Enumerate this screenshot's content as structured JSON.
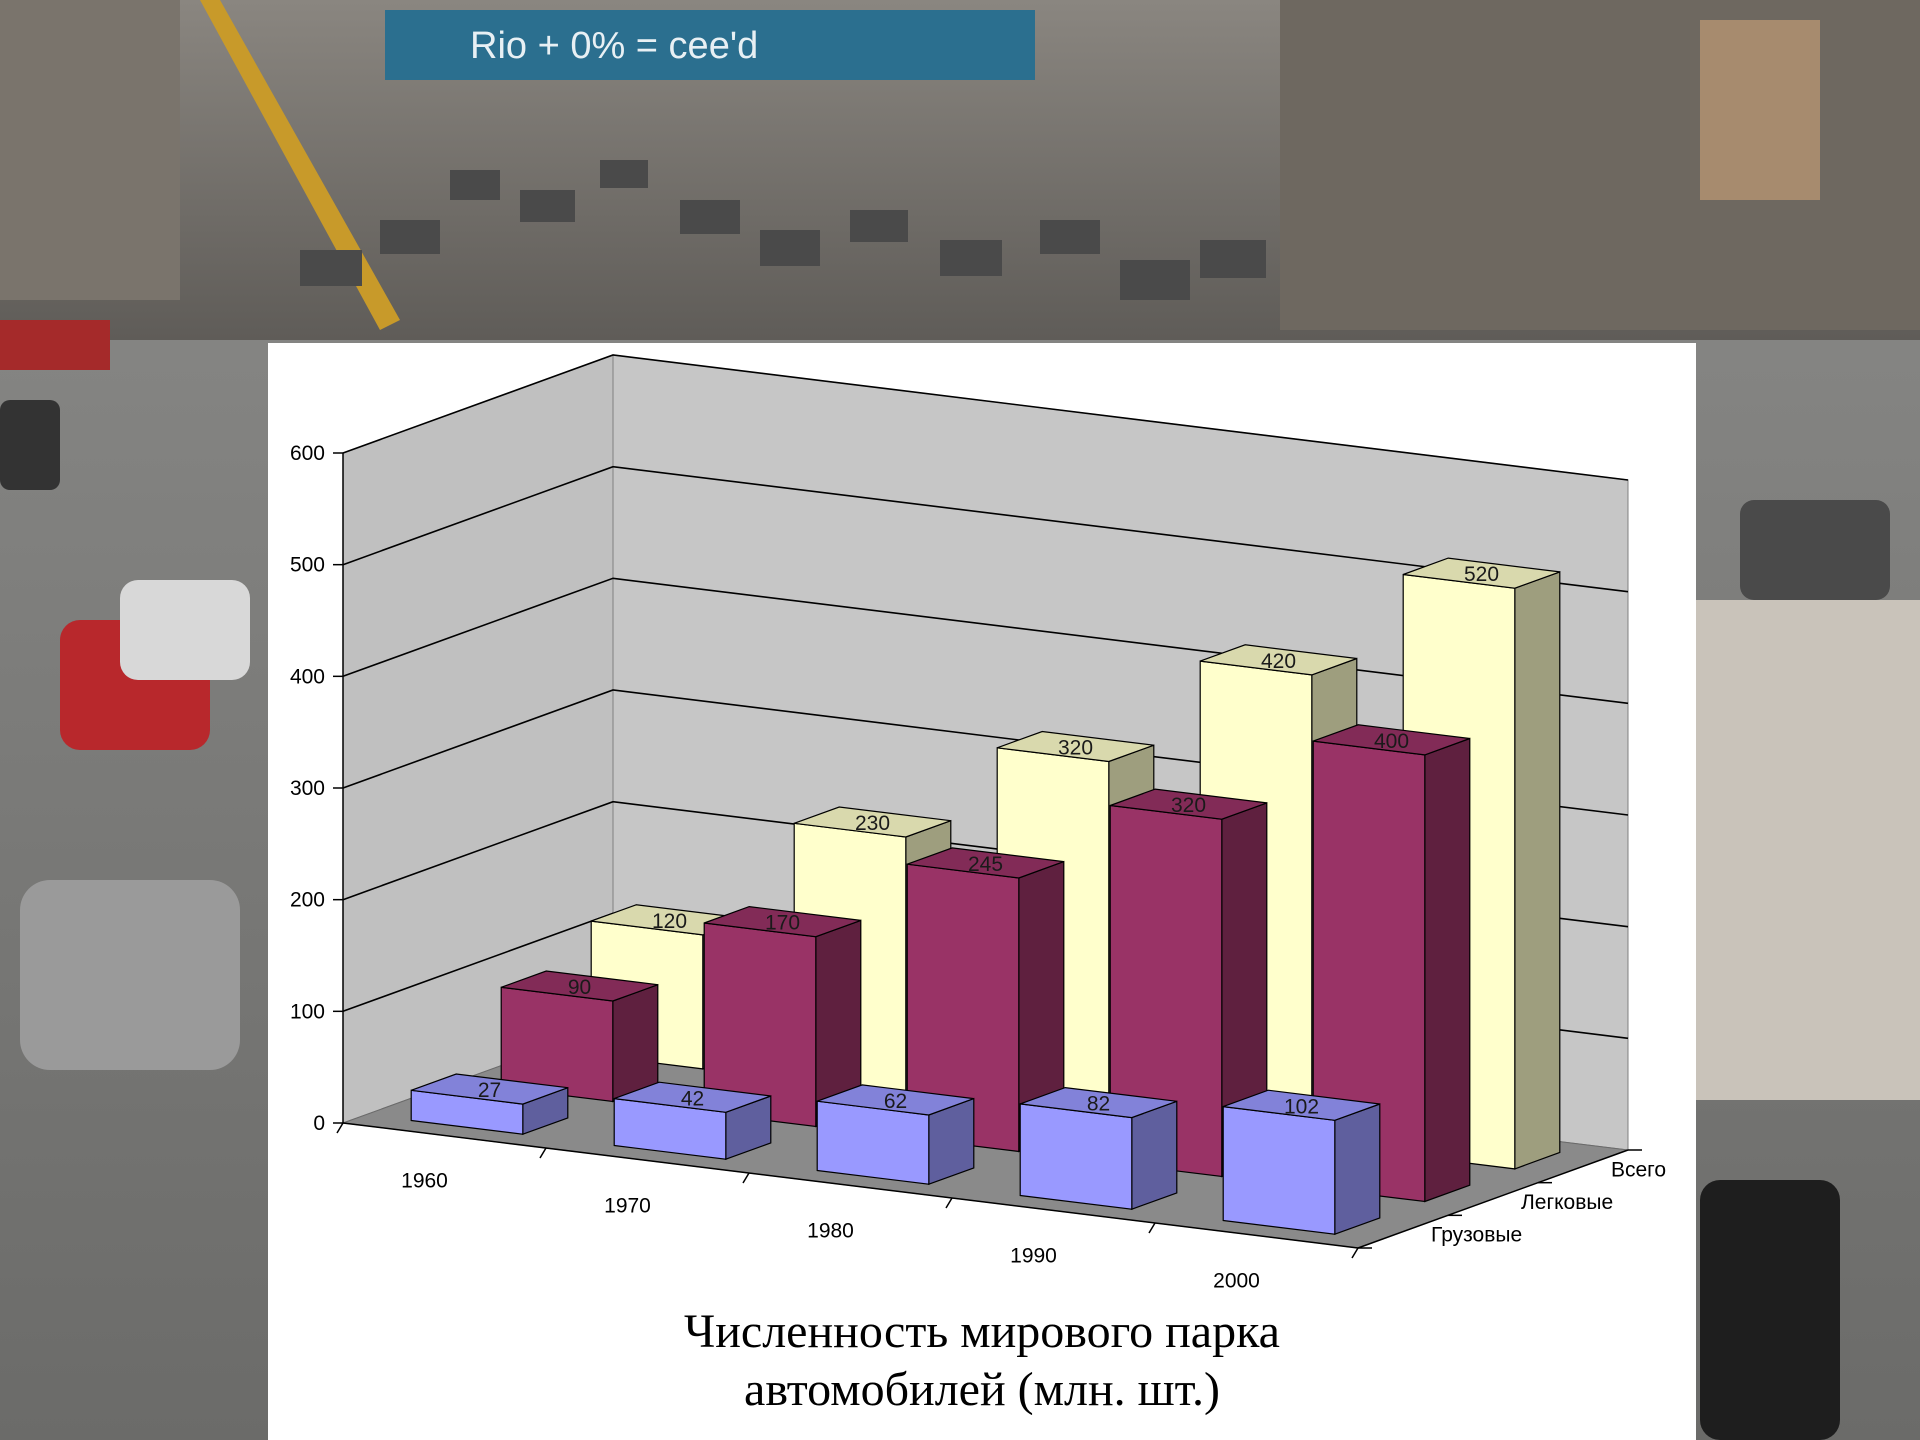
{
  "chart_data": {
    "type": "bar",
    "title_lines": [
      "Численность мирового парка",
      "автомобилей (млн. шт.)"
    ],
    "categories": [
      "1960",
      "1970",
      "1980",
      "1990",
      "2000"
    ],
    "series": [
      {
        "name": "Грузовые",
        "values": [
          27,
          42,
          62,
          82,
          102
        ],
        "color": "#9999ff"
      },
      {
        "name": "Легковые",
        "values": [
          90,
          170,
          245,
          320,
          400
        ],
        "color": "#993366"
      },
      {
        "name": "Всего",
        "values": [
          120,
          230,
          320,
          420,
          520
        ],
        "color": "#ffffcc"
      }
    ],
    "yticks": [
      0,
      100,
      200,
      300,
      400,
      500,
      600
    ],
    "ylim": [
      0,
      600
    ],
    "grid": true,
    "style": "3d-column"
  },
  "background": {
    "description_icon": "street-traffic-photo",
    "banner_text": "Rio + 0% = cee'd"
  }
}
